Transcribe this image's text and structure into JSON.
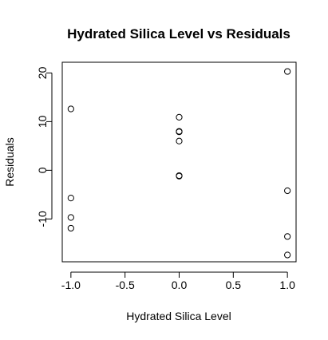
{
  "chart_data": {
    "type": "scatter",
    "title": "Hydrated Silica Level vs Residuals",
    "xlabel": "Hydrated Silica Level",
    "ylabel": "Residuals",
    "xlim": [
      -1.08,
      1.08
    ],
    "ylim": [
      -18.8,
      22.2
    ],
    "x_ticks": [
      -1.0,
      -0.5,
      0.0,
      0.5,
      1.0
    ],
    "x_tick_labels": [
      "-1.0",
      "-0.5",
      "0.0",
      "0.5",
      "1.0"
    ],
    "y_ticks": [
      -10,
      0,
      10,
      20
    ],
    "y_tick_labels": [
      "-10",
      "0",
      "10",
      "20"
    ],
    "grid": false,
    "points": [
      {
        "x": -1,
        "y": 12.6
      },
      {
        "x": -1,
        "y": -5.7
      },
      {
        "x": -1,
        "y": -9.7
      },
      {
        "x": -1,
        "y": -11.9
      },
      {
        "x": 0,
        "y": 10.9
      },
      {
        "x": 0,
        "y": 8.0
      },
      {
        "x": 0,
        "y": 7.9
      },
      {
        "x": 0,
        "y": 6.0
      },
      {
        "x": 0,
        "y": -1.1
      },
      {
        "x": 0,
        "y": -1.2
      },
      {
        "x": 1,
        "y": 20.3
      },
      {
        "x": 1,
        "y": -4.2
      },
      {
        "x": 1,
        "y": -13.6
      },
      {
        "x": 1,
        "y": -17.4
      }
    ]
  }
}
